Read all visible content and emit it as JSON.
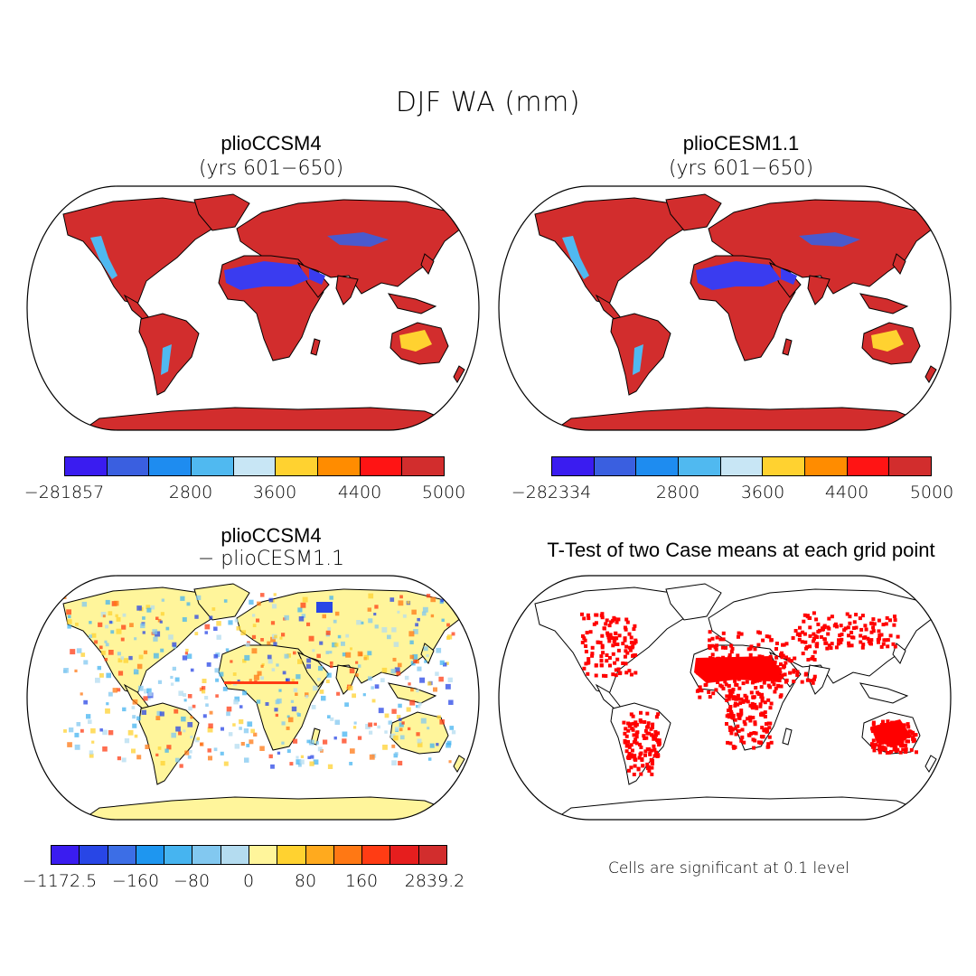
{
  "main_title": "DJF WA (mm)",
  "panels": [
    {
      "title": "plioCCSM4",
      "subtitle": "(yrs 601−650)"
    },
    {
      "title": "plioCESM1.1",
      "subtitle": "(yrs 601−650)"
    },
    {
      "title": "plioCCSM4",
      "subtitle": "− plioCESM1.1"
    },
    {
      "title": "T-Test of two Case means at each grid point",
      "subtitle": ""
    }
  ],
  "colorbars": [
    {
      "colors": [
        "#3a1cf0",
        "#3a5fe0",
        "#1e8cf0",
        "#50b9f0",
        "#c8e6f5",
        "#ffd230",
        "#ff8c00",
        "#ff1414",
        "#d22d2d"
      ],
      "labels": [
        "−281857",
        "2800",
        "3600",
        "4400",
        "5000"
      ]
    },
    {
      "colors": [
        "#3a1cf0",
        "#3a5fe0",
        "#1e8cf0",
        "#50b9f0",
        "#c8e6f5",
        "#ffd230",
        "#ff8c00",
        "#ff1414",
        "#d22d2d"
      ],
      "labels": [
        "−282334",
        "2800",
        "3600",
        "4400",
        "5000"
      ]
    },
    {
      "colors": [
        "#3a1cf0",
        "#2846e6",
        "#3c6ee6",
        "#1e96f0",
        "#46b4f0",
        "#82c8f0",
        "#b4dcf0",
        "#fff59b",
        "#ffd230",
        "#ffaa1e",
        "#ff7814",
        "#ff3c14",
        "#e61e1e",
        "#d22d2d"
      ],
      "labels": [
        "−1172.5",
        "−160",
        "−80",
        "0",
        "80",
        "160",
        "2839.2"
      ]
    }
  ],
  "note": "Cells are significant at 0.1 level",
  "colors": {
    "land_top": "#d22d2d",
    "land_diff": "#fff59b",
    "signif": "#ff0000",
    "desert": "#3a3cf0"
  }
}
